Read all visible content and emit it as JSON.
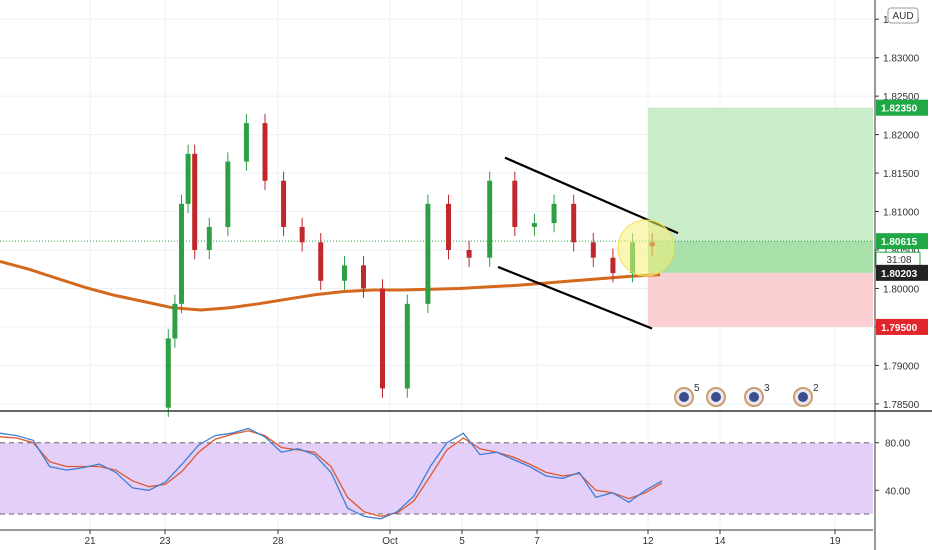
{
  "chart_data": {
    "type": "candlestick",
    "currency_label": "AUD",
    "x_ticks": [
      "21",
      "23",
      "28",
      "Oct",
      "5",
      "7",
      "12",
      "14",
      "19"
    ],
    "price_axis": {
      "ticks": [
        "1.83500",
        "1.83000",
        "1.82500",
        "1.82000",
        "1.81500",
        "1.81000",
        "1.80500",
        "1.80000",
        "1.79500",
        "1.79000",
        "1.78500"
      ],
      "ylim": [
        1.7842,
        1.8375
      ]
    },
    "price_tags": [
      {
        "label": "1.82350",
        "value": 1.8235,
        "color": "#1fa845"
      },
      {
        "label": "1.80615",
        "value": 1.80615,
        "color": "#1fa845"
      },
      {
        "label": "31:08",
        "value": 1.8041,
        "color": "#1fa845",
        "style": "countdown"
      },
      {
        "label": "1.80203",
        "value": 1.80203,
        "color": "#222222"
      },
      {
        "label": "1.79500",
        "value": 1.795,
        "color": "#e0252b"
      }
    ],
    "long_position": {
      "entry": 1.80203,
      "target": 1.8235,
      "stop": 1.795
    },
    "moving_average": [
      1.8035,
      1.8025,
      1.8013,
      1.8001,
      1.7991,
      1.7983,
      1.7975,
      1.7972,
      1.7975,
      1.798,
      1.7986,
      1.7992,
      1.7996,
      1.7998,
      1.7998,
      1.7999,
      1.8,
      1.8002,
      1.8004,
      1.8007,
      1.801,
      1.8013,
      1.8016,
      1.8018
    ],
    "channel_upper": [
      1.817,
      1.8072
    ],
    "channel_lower": [
      1.8028,
      1.7948
    ],
    "candles_approx": {
      "comment_free": true,
      "opens": [
        1.7845,
        1.7935,
        1.798,
        1.811,
        1.8175,
        1.805,
        1.808,
        1.8165,
        1.8215,
        1.814,
        1.808,
        1.806,
        1.801,
        1.803,
        1.8,
        1.787,
        1.798,
        1.811,
        1.805,
        1.804,
        1.814,
        1.808,
        1.8085,
        1.811,
        1.806,
        1.804,
        1.802,
        1.806
      ],
      "closes": [
        1.7935,
        1.798,
        1.811,
        1.8175,
        1.805,
        1.808,
        1.8165,
        1.8215,
        1.814,
        1.808,
        1.806,
        1.801,
        1.803,
        1.8,
        1.787,
        1.798,
        1.811,
        1.805,
        1.804,
        1.814,
        1.808,
        1.8085,
        1.811,
        1.806,
        1.804,
        1.802,
        1.806,
        1.8055
      ]
    },
    "events": [
      {
        "count": "5"
      },
      {
        "count": ""
      },
      {
        "count": "3"
      },
      {
        "count": "2"
      }
    ],
    "rsi": {
      "ticks": [
        "80.00",
        "40.00"
      ],
      "ylim": [
        15,
        105
      ],
      "band": [
        20,
        80
      ],
      "values": [
        88,
        86,
        82,
        60,
        57,
        59,
        62,
        55,
        42,
        40,
        47,
        62,
        78,
        86,
        88,
        92,
        85,
        72,
        75,
        70,
        55,
        25,
        18,
        16,
        22,
        35,
        60,
        80,
        88,
        70,
        72,
        66,
        60,
        52,
        50,
        55,
        34,
        38,
        30,
        40,
        48
      ],
      "signal": [
        85,
        84,
        80,
        64,
        60,
        60,
        60,
        57,
        48,
        43,
        45,
        56,
        72,
        83,
        87,
        90,
        86,
        76,
        74,
        72,
        60,
        34,
        22,
        18,
        21,
        31,
        52,
        74,
        84,
        75,
        72,
        68,
        62,
        55,
        52,
        54,
        40,
        38,
        33,
        38,
        46
      ]
    }
  }
}
